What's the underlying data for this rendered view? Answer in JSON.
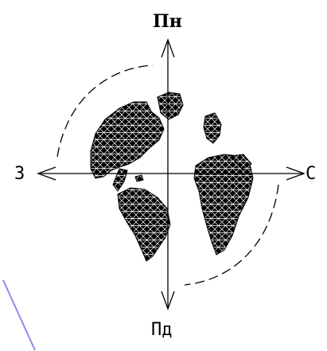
{
  "compass": {
    "north": "Пн",
    "south": "Пд",
    "west": "З",
    "east": "С"
  },
  "colors": {
    "ink": "#000000",
    "background": "#ffffff",
    "accent_line": "#8a8cf0"
  },
  "graphic": {
    "globe_icon": "triangulated-globe-icon"
  }
}
